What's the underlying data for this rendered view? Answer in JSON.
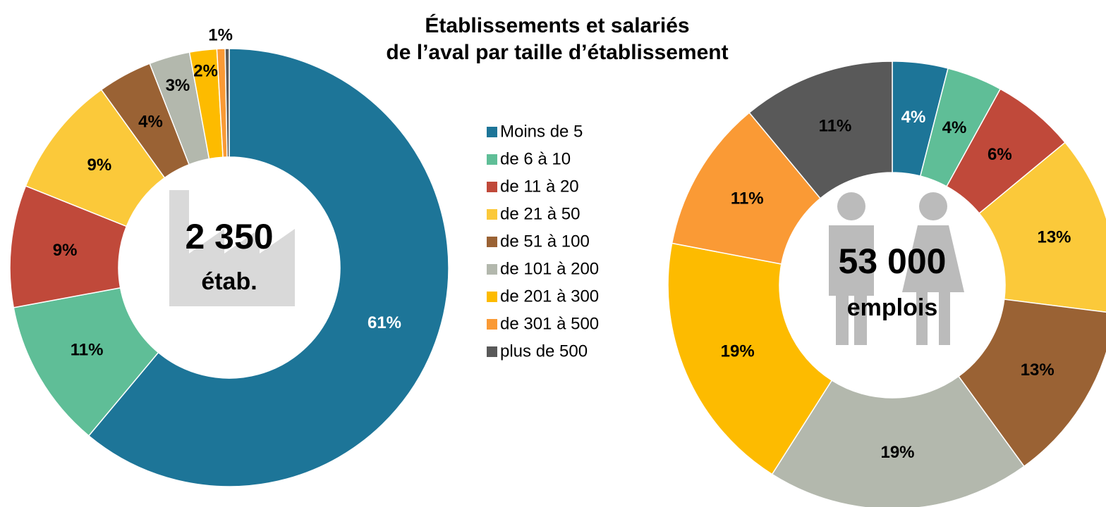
{
  "title": [
    "Établissements et salariés",
    "de l’aval par taille d’établissement"
  ],
  "legend": {
    "categories": [
      "Moins de 5",
      "de 6 à 10",
      "de 11 à 20",
      "de 21 à 50",
      "de 51 à 100",
      "de 101 à 200",
      "de 201 à 300",
      "de 301 à 500",
      "plus de 500"
    ],
    "colors": [
      "#1d7598",
      "#5fbe97",
      "#c0493a",
      "#fbc93a",
      "#9a6234",
      "#b3b8ad",
      "#fdbb00",
      "#fa9a35",
      "#595959"
    ]
  },
  "chart_data": [
    {
      "type": "donut",
      "values": [
        61,
        11,
        9,
        9,
        4,
        3,
        2,
        0.6,
        0.3
      ],
      "value_labels": [
        "61%",
        "11%",
        "9%",
        "9%",
        "4%",
        "3%",
        "2%",
        "1%",
        null
      ],
      "center_label": [
        "2 350",
        "étab."
      ]
    },
    {
      "type": "donut",
      "values": [
        4,
        4,
        6,
        13,
        13,
        19,
        19,
        11,
        11
      ],
      "value_labels": [
        "4%",
        "4%",
        "6%",
        "13%",
        "13%",
        "19%",
        "19%",
        "11%",
        "11%"
      ],
      "center_label": [
        "53 000",
        "emplois"
      ]
    }
  ]
}
